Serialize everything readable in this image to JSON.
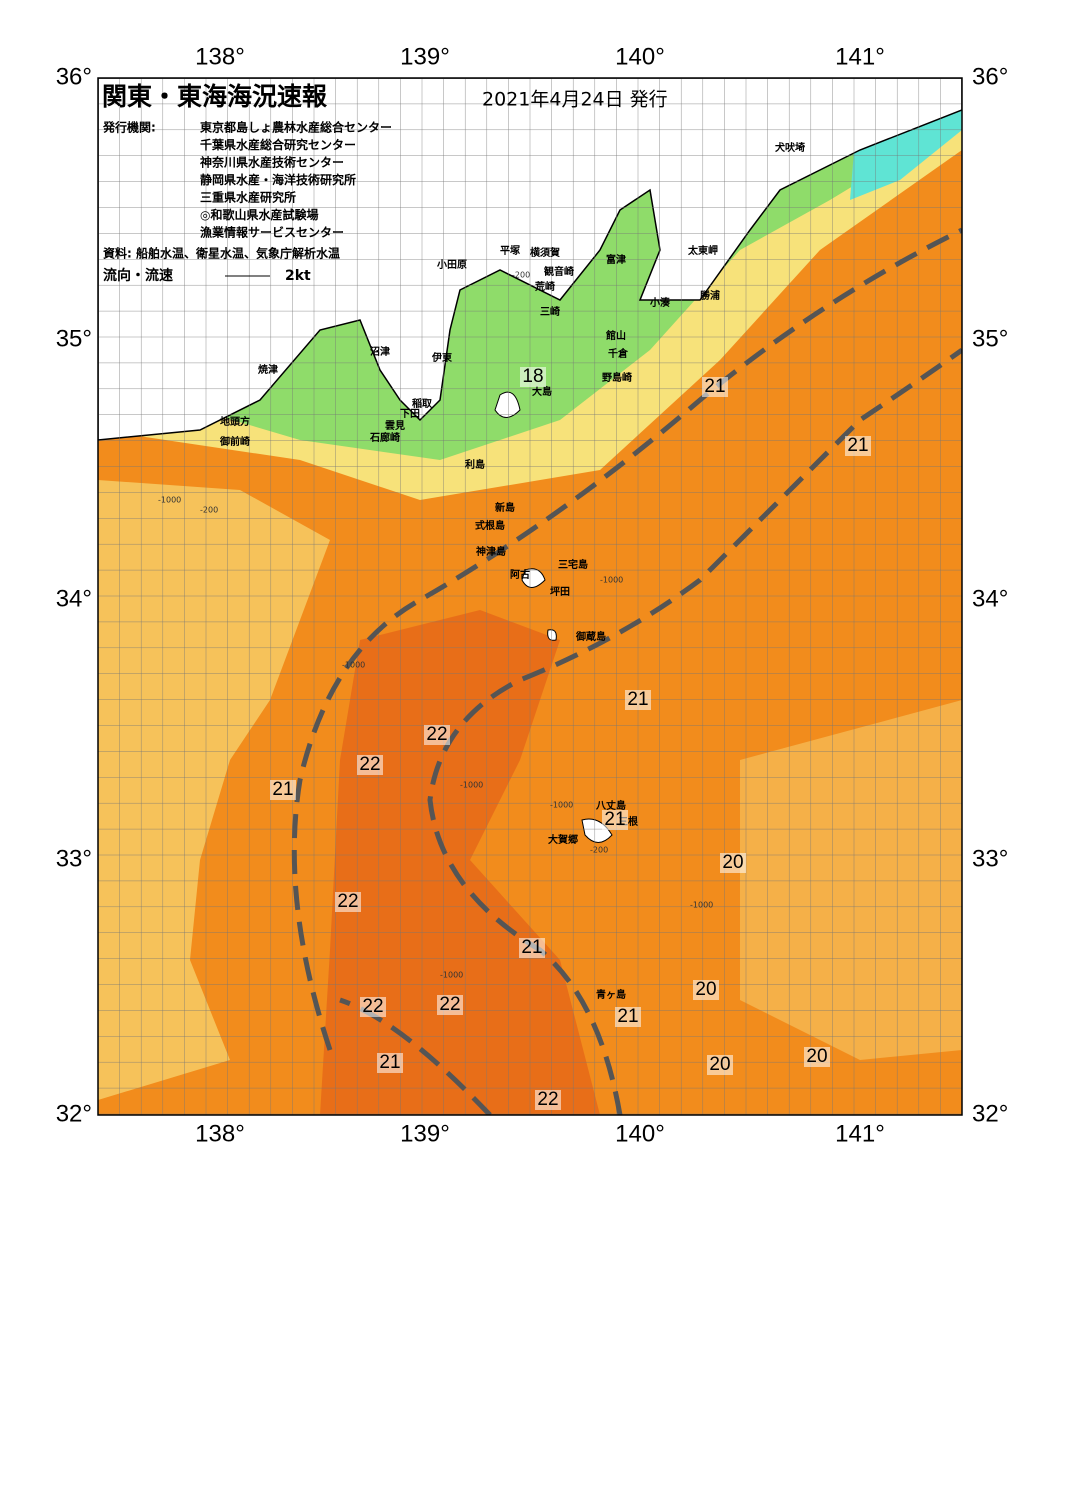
{
  "map": {
    "title": "関東・東海海況速報",
    "date": "2021年4月24日 発行",
    "agencies_label": "発行機関:",
    "agencies": [
      "東京都島しょ農林水産総合センター",
      "千葉県水産総合研究センター",
      "神奈川県水産技術センター",
      "静岡県水産・海洋技術研究所",
      "三重県水産研究所",
      "◎和歌山県水産試験場",
      "漁業情報サービスセンター"
    ],
    "source": "資料: 船舶水温、衛星水温、気象庁解析水温",
    "current_label": "流向・流速",
    "current_scale": "2kt",
    "lon_labels": [
      "138°",
      "139°",
      "140°",
      "141°"
    ],
    "lat_labels": [
      "36°",
      "35°",
      "34°",
      "33°",
      "32°"
    ],
    "places": [
      "犬吠埼",
      "太東岬",
      "勝浦",
      "小湊",
      "富津",
      "館山",
      "千倉",
      "野島崎",
      "横須賀",
      "観音崎",
      "荒崎",
      "三崎",
      "平塚",
      "小田原",
      "沼津",
      "伊東",
      "焼津",
      "稲取",
      "下田",
      "雲見",
      "石廊崎",
      "地頭方",
      "御前崎",
      "大島",
      "利島",
      "新島",
      "式根島",
      "神津島",
      "三宅島",
      "阿古",
      "坪田",
      "御蔵島",
      "八丈島",
      "大賀郷",
      "三根",
      "青ヶ島"
    ],
    "contour_labels": [
      21,
      21,
      18,
      21,
      22,
      22,
      21,
      21,
      20,
      22,
      21,
      20,
      22,
      22,
      21,
      20,
      20,
      21,
      22
    ],
    "depth_labels": [
      "-1000",
      "-200",
      "-1000",
      "-1000",
      "-200",
      "-1000",
      "-1000",
      "-1000",
      "-200",
      "-1000"
    ]
  }
}
